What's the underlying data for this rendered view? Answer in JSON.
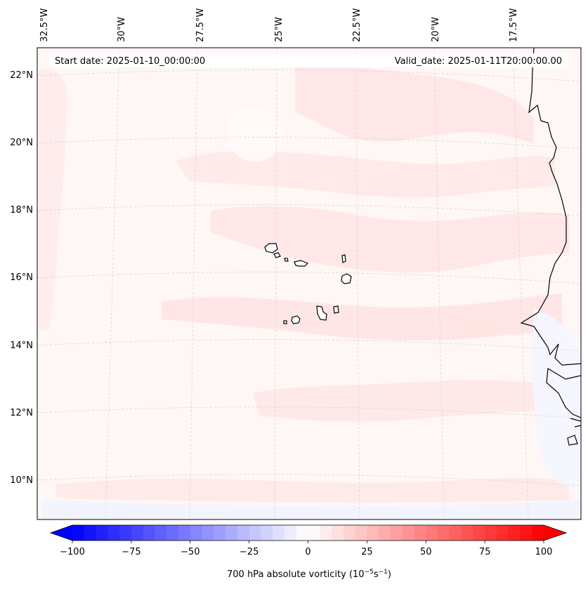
{
  "header": {
    "start_date": "Start date: 2025-01-10_00:00:00",
    "valid_date": "Valid_date: 2025-01-11T20:00:00.00"
  },
  "map": {
    "projection": "conic",
    "gridlines": true,
    "lon_labels": [
      {
        "text": "32.5°W",
        "lon": -32.5
      },
      {
        "text": "30°W",
        "lon": -30
      },
      {
        "text": "27.5°W",
        "lon": -27.5
      },
      {
        "text": "25°W",
        "lon": -25
      },
      {
        "text": "22.5°W",
        "lon": -22.5
      },
      {
        "text": "20°W",
        "lon": -20
      },
      {
        "text": "17.5°W",
        "lon": -17.5
      }
    ],
    "lat_labels": [
      {
        "text": "22°N",
        "lat": 22
      },
      {
        "text": "20°N",
        "lat": 20
      },
      {
        "text": "18°N",
        "lat": 18
      },
      {
        "text": "16°N",
        "lat": 16
      },
      {
        "text": "14°N",
        "lat": 14
      },
      {
        "text": "12°N",
        "lat": 12
      },
      {
        "text": "10°N",
        "lat": 10
      }
    ],
    "field": "700 hPa absolute vorticity",
    "field_colors": {
      "weak_positive": "#fff5f5",
      "moderate_positive": "#ffe3e3",
      "near_zero": "#fdfdff",
      "negative": "#f3f6ff"
    }
  },
  "colorbar": {
    "label": "700 hPa absolute vorticity (10",
    "label_exp1": "−5",
    "label_mid": "s",
    "label_exp2": "−1",
    "label_end": ")",
    "min": -100,
    "max": 100,
    "ticks": [
      {
        "value": -100,
        "text": "−100"
      },
      {
        "value": -75,
        "text": "−75"
      },
      {
        "value": -50,
        "text": "−50"
      },
      {
        "value": -25,
        "text": "−25"
      },
      {
        "value": 0,
        "text": "0"
      },
      {
        "value": 25,
        "text": "25"
      },
      {
        "value": 50,
        "text": "50"
      },
      {
        "value": 75,
        "text": "75"
      },
      {
        "value": 100,
        "text": "100"
      }
    ],
    "colormap": "bwr",
    "min_color": "#0000ff",
    "mid_color": "#ffffff",
    "max_color": "#ff0000"
  }
}
